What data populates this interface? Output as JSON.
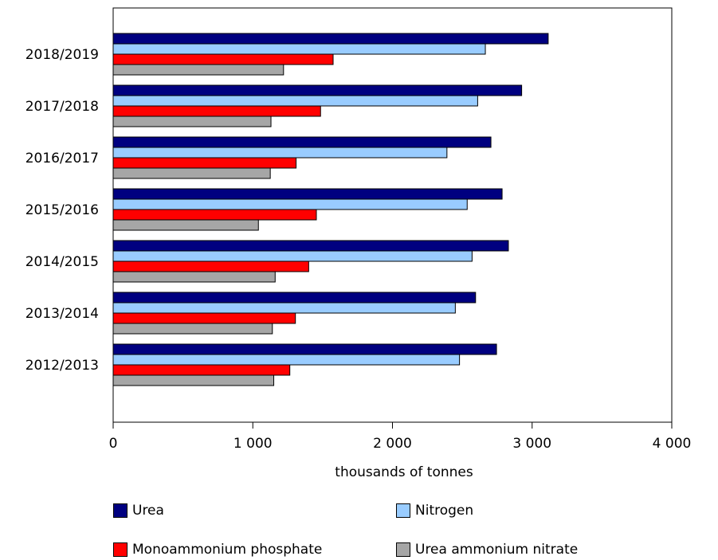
{
  "chart_data": {
    "type": "bar",
    "orientation": "horizontal",
    "title": "",
    "xlabel": "thousands of tonnes",
    "ylabel": "",
    "xlim": [
      0,
      4000
    ],
    "xticks": [
      0,
      1000,
      2000,
      3000,
      4000
    ],
    "xtick_labels": [
      "0",
      "1 000",
      "2 000",
      "3 000",
      "4 000"
    ],
    "categories": [
      "2018/2019",
      "2017/2018",
      "2016/2017",
      "2015/2016",
      "2014/2015",
      "2013/2014",
      "2012/2013"
    ],
    "series": [
      {
        "name": "Urea",
        "color": "#000080",
        "values": [
          3115,
          2925,
          2705,
          2785,
          2830,
          2595,
          2745
        ]
      },
      {
        "name": "Nitrogen",
        "color": "#99ccff",
        "values": [
          2665,
          2610,
          2390,
          2535,
          2570,
          2450,
          2480
        ]
      },
      {
        "name": "Monoammonium phosphate",
        "color": "#ff0000",
        "values": [
          1575,
          1485,
          1310,
          1455,
          1400,
          1305,
          1265
        ]
      },
      {
        "name": "Urea ammonium nitrate",
        "color": "#a6a6a6",
        "values": [
          1220,
          1130,
          1125,
          1040,
          1160,
          1140,
          1150
        ]
      }
    ],
    "grid": false,
    "legend_position": "bottom"
  }
}
